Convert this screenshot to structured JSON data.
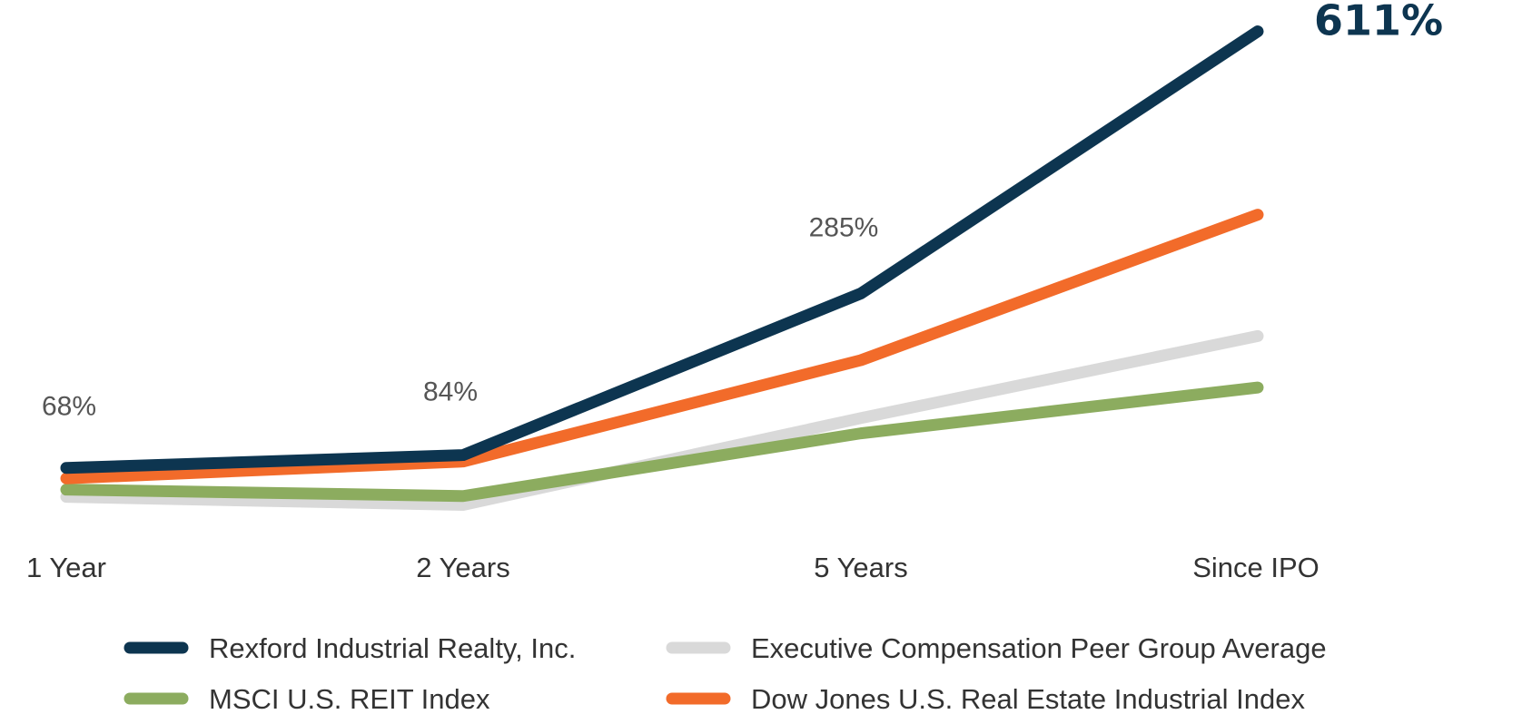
{
  "chart_data": {
    "type": "line",
    "title": "",
    "xlabel": "",
    "ylabel": "",
    "categories": [
      "1 Year",
      "2 Years",
      "5 Years",
      "Since IPO"
    ],
    "ylim": [
      0,
      650
    ],
    "grid": false,
    "legend_position": "bottom",
    "series": [
      {
        "name": "Rexford Industrial Realty, Inc.",
        "color": "#0d3550",
        "values": [
          68,
          84,
          285,
          611
        ],
        "labels": [
          "68%",
          "84%",
          "285%",
          "611%"
        ]
      },
      {
        "name": "Executive Compensation Peer Group Average",
        "color": "#d9d9d9",
        "values": [
          32,
          22,
          130,
          232
        ],
        "labels": []
      },
      {
        "name": "MSCI U.S. REIT Index",
        "color": "#8cac5f",
        "values": [
          41,
          33,
          111,
          168
        ],
        "labels": []
      },
      {
        "name": "Dow Jones U.S. Real Estate Industrial Index",
        "color": "#f26b2a",
        "values": [
          55,
          76,
          202,
          383
        ],
        "labels": []
      }
    ]
  }
}
